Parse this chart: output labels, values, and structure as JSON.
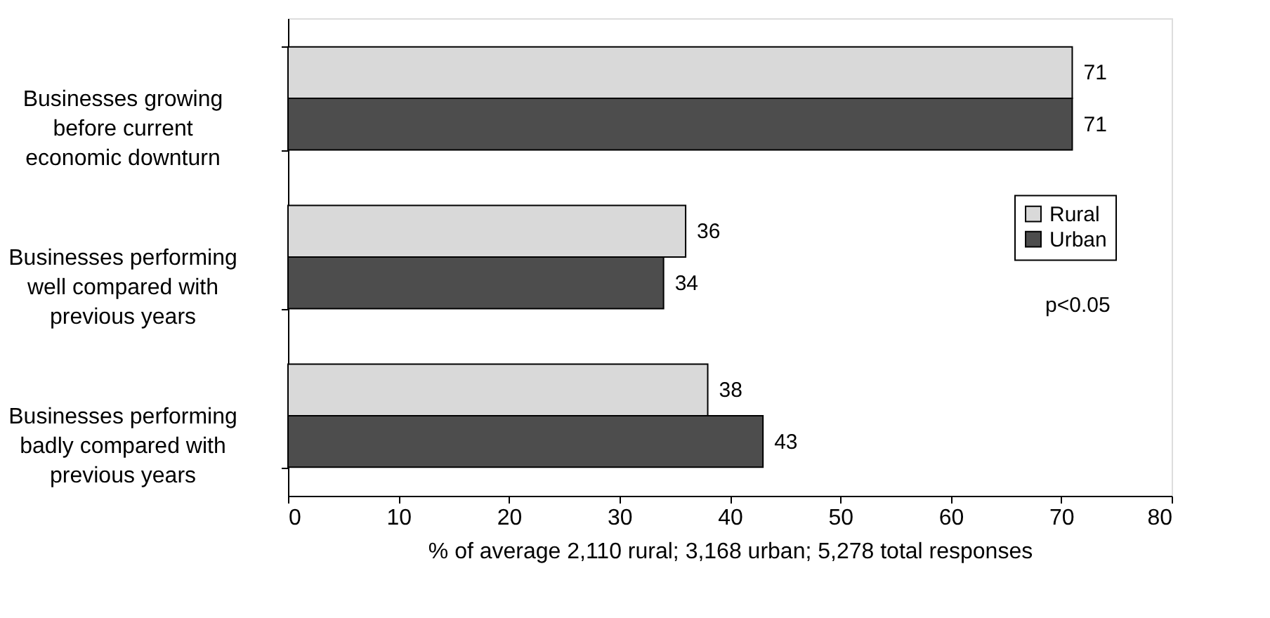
{
  "chart_data": {
    "type": "bar",
    "orientation": "horizontal",
    "categories": [
      "Businesses growing\nbefore current\neconomic downturn",
      "Businesses performing\nwell compared with\nprevious years",
      "Businesses performing\nbadly compared with\nprevious years"
    ],
    "series": [
      {
        "name": "Rural",
        "color": "#d9d9d9",
        "values": [
          71,
          36,
          38
        ]
      },
      {
        "name": "Urban",
        "color": "#4d4d4d",
        "values": [
          71,
          34,
          43
        ]
      }
    ],
    "xlim": [
      0,
      80
    ],
    "xticks": [
      0,
      10,
      20,
      30,
      40,
      50,
      60,
      70,
      80
    ],
    "xlabel": "% of average 2,110 rural; 3,168 urban; 5,278 total responses",
    "annotations": [
      "p<0.05"
    ],
    "data_labels": true,
    "legend": "right",
    "grid": false
  }
}
